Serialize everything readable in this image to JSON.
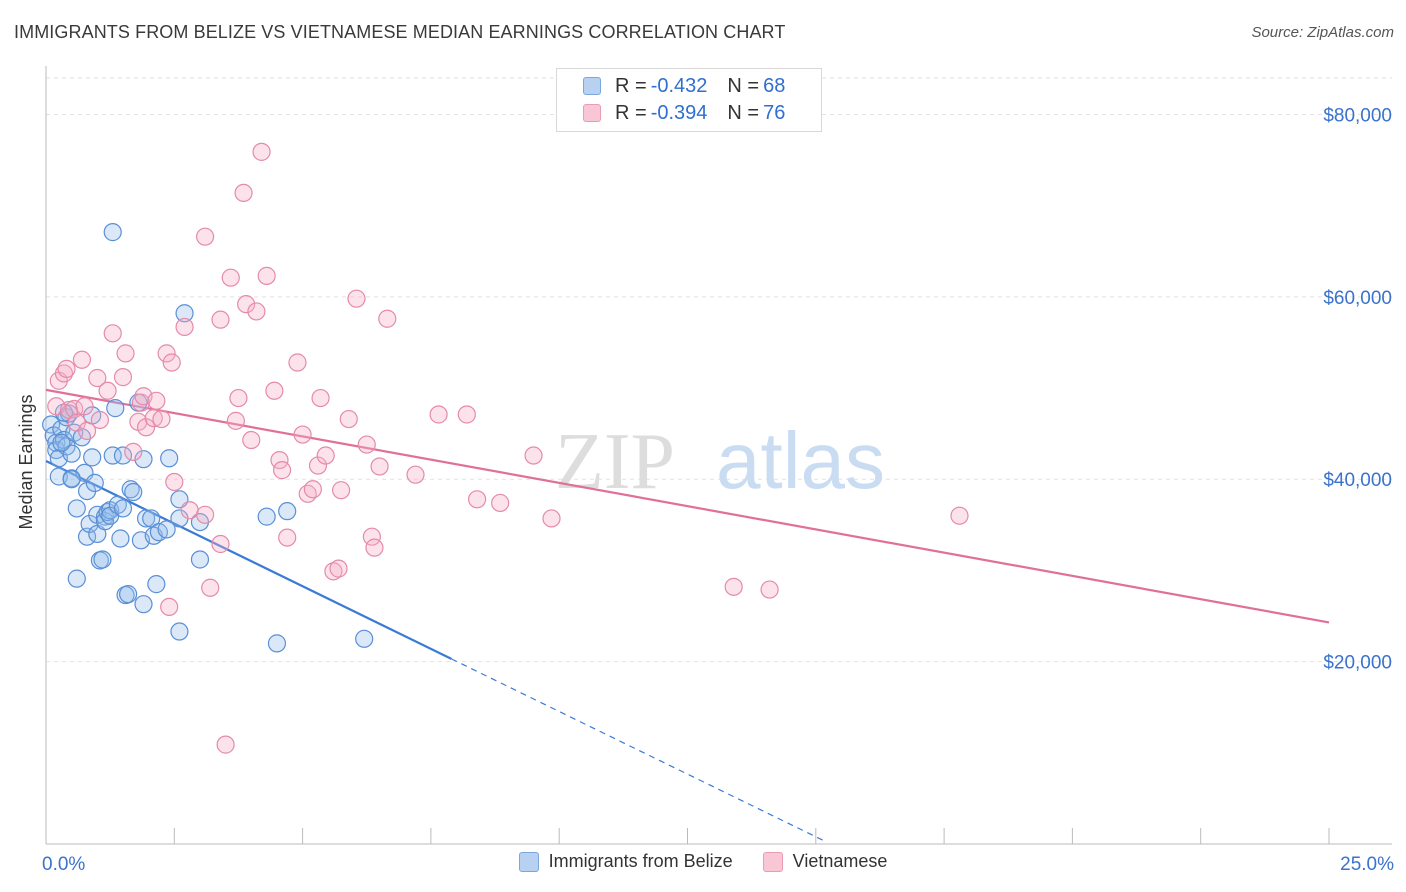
{
  "title": "IMMIGRANTS FROM BELIZE VS VIETNAMESE MEDIAN EARNINGS CORRELATION CHART",
  "source": "Source: ZipAtlas.com",
  "legend_top": {
    "rows": [
      {
        "r_label": "R =",
        "r_value": "-0.432",
        "n_label": "N =",
        "n_value": "68",
        "color": "blue"
      },
      {
        "r_label": "R =",
        "r_value": "-0.394",
        "n_label": "N =",
        "n_value": "76",
        "color": "pink"
      }
    ]
  },
  "legend_bottom": [
    "Immigrants from Belize",
    "Vietnamese"
  ],
  "watermark": {
    "part1": "ZIP",
    "part2": "atlas"
  },
  "colors": {
    "blue": "#3a7bd5",
    "pink": "#e0709a",
    "axis_text": "#3a72cc"
  },
  "chart_data": {
    "type": "scatter",
    "xlabel": "",
    "ylabel": "Median Earnings",
    "xlim": [
      0,
      25
    ],
    "ylim": [
      0,
      84000
    ],
    "x_tick_labels": [
      "0.0%",
      "25.0%"
    ],
    "y_ticks": [
      20000,
      40000,
      60000,
      80000
    ],
    "y_tick_labels": [
      "$20,000",
      "$40,000",
      "$60,000",
      "$80,000"
    ],
    "grid": true,
    "legend": "top-center",
    "series": [
      {
        "name": "Immigrants from Belize",
        "color": "#3a7bd5",
        "trend": {
          "x0": 0.0,
          "y0": 42000,
          "x1": 7.9,
          "y1": 20300,
          "dashed_to_x": 15.2
        },
        "points": [
          [
            0.1,
            46000
          ],
          [
            0.15,
            44800
          ],
          [
            0.2,
            44000
          ],
          [
            0.2,
            43200
          ],
          [
            0.25,
            42300
          ],
          [
            0.25,
            40300
          ],
          [
            0.3,
            45500
          ],
          [
            0.35,
            44300
          ],
          [
            0.4,
            46800
          ],
          [
            0.4,
            43600
          ],
          [
            0.45,
            47200
          ],
          [
            0.5,
            42800
          ],
          [
            0.5,
            40100
          ],
          [
            0.55,
            45100
          ],
          [
            0.6,
            36800
          ],
          [
            0.6,
            29100
          ],
          [
            0.7,
            44600
          ],
          [
            0.75,
            40700
          ],
          [
            0.8,
            38700
          ],
          [
            0.8,
            33700
          ],
          [
            0.85,
            35100
          ],
          [
            0.9,
            42400
          ],
          [
            0.95,
            39600
          ],
          [
            1.0,
            36100
          ],
          [
            1.0,
            34000
          ],
          [
            1.05,
            31100
          ],
          [
            1.1,
            31200
          ],
          [
            1.15,
            35900
          ],
          [
            1.15,
            35400
          ],
          [
            1.2,
            36400
          ],
          [
            1.25,
            36600
          ],
          [
            1.25,
            36000
          ],
          [
            1.3,
            42600
          ],
          [
            1.35,
            47800
          ],
          [
            1.4,
            37200
          ],
          [
            1.45,
            33500
          ],
          [
            1.5,
            42600
          ],
          [
            1.55,
            27300
          ],
          [
            1.6,
            27400
          ],
          [
            1.65,
            38900
          ],
          [
            1.7,
            38600
          ],
          [
            1.8,
            48400
          ],
          [
            1.85,
            33300
          ],
          [
            1.9,
            26300
          ],
          [
            1.9,
            42200
          ],
          [
            1.95,
            35700
          ],
          [
            2.05,
            35700
          ],
          [
            2.1,
            33800
          ],
          [
            2.15,
            28500
          ],
          [
            2.2,
            34200
          ],
          [
            2.35,
            34500
          ],
          [
            2.4,
            42300
          ],
          [
            2.6,
            37800
          ],
          [
            2.6,
            35700
          ],
          [
            2.7,
            58200
          ],
          [
            3.0,
            35300
          ],
          [
            2.6,
            23300
          ],
          [
            3.0,
            31200
          ],
          [
            4.3,
            35900
          ],
          [
            4.5,
            22000
          ],
          [
            4.7,
            36500
          ],
          [
            6.2,
            22500
          ],
          [
            1.3,
            67100
          ],
          [
            0.3,
            44000
          ],
          [
            0.5,
            40000
          ],
          [
            0.9,
            47000
          ],
          [
            1.5,
            36800
          ],
          [
            0.35,
            47300
          ]
        ]
      },
      {
        "name": "Vietnamese",
        "color": "#e0709a",
        "trend": {
          "x0": 0.0,
          "y0": 49800,
          "x1": 25.0,
          "y1": 24300
        },
        "points": [
          [
            0.2,
            48000
          ],
          [
            0.25,
            50800
          ],
          [
            0.35,
            51600
          ],
          [
            0.4,
            52100
          ],
          [
            0.45,
            47600
          ],
          [
            0.55,
            47700
          ],
          [
            0.6,
            46200
          ],
          [
            0.7,
            53100
          ],
          [
            0.75,
            48000
          ],
          [
            0.8,
            45300
          ],
          [
            1.0,
            51100
          ],
          [
            1.05,
            46500
          ],
          [
            1.2,
            49700
          ],
          [
            1.3,
            56000
          ],
          [
            1.5,
            51200
          ],
          [
            1.55,
            53800
          ],
          [
            1.7,
            43000
          ],
          [
            1.8,
            46300
          ],
          [
            1.85,
            48400
          ],
          [
            1.9,
            49100
          ],
          [
            1.95,
            45700
          ],
          [
            2.1,
            46700
          ],
          [
            2.15,
            48600
          ],
          [
            2.25,
            46600
          ],
          [
            2.35,
            53800
          ],
          [
            2.45,
            52800
          ],
          [
            2.5,
            39700
          ],
          [
            2.7,
            56700
          ],
          [
            2.8,
            36600
          ],
          [
            3.1,
            36100
          ],
          [
            3.1,
            66600
          ],
          [
            3.4,
            57500
          ],
          [
            3.4,
            32900
          ],
          [
            3.6,
            62100
          ],
          [
            3.7,
            46400
          ],
          [
            3.75,
            48900
          ],
          [
            3.85,
            71400
          ],
          [
            3.9,
            59200
          ],
          [
            4.0,
            44300
          ],
          [
            4.1,
            58400
          ],
          [
            4.2,
            75900
          ],
          [
            4.3,
            62300
          ],
          [
            4.45,
            49700
          ],
          [
            4.55,
            42100
          ],
          [
            4.6,
            41000
          ],
          [
            4.7,
            33600
          ],
          [
            4.9,
            52800
          ],
          [
            5.0,
            44900
          ],
          [
            5.1,
            38400
          ],
          [
            5.2,
            38900
          ],
          [
            5.3,
            41500
          ],
          [
            5.35,
            48900
          ],
          [
            5.45,
            42600
          ],
          [
            5.6,
            29900
          ],
          [
            5.7,
            30200
          ],
          [
            5.75,
            38800
          ],
          [
            5.9,
            46600
          ],
          [
            6.05,
            59800
          ],
          [
            6.25,
            43800
          ],
          [
            6.35,
            33700
          ],
          [
            6.4,
            32500
          ],
          [
            6.5,
            41400
          ],
          [
            6.65,
            57600
          ],
          [
            7.2,
            40500
          ],
          [
            7.65,
            47100
          ],
          [
            8.2,
            47100
          ],
          [
            8.4,
            37800
          ],
          [
            8.85,
            37400
          ],
          [
            9.5,
            42600
          ],
          [
            9.85,
            35700
          ],
          [
            13.4,
            28200
          ],
          [
            14.1,
            27900
          ],
          [
            17.8,
            36000
          ],
          [
            3.5,
            10900
          ],
          [
            2.4,
            26000
          ],
          [
            3.2,
            28100
          ]
        ]
      }
    ]
  }
}
